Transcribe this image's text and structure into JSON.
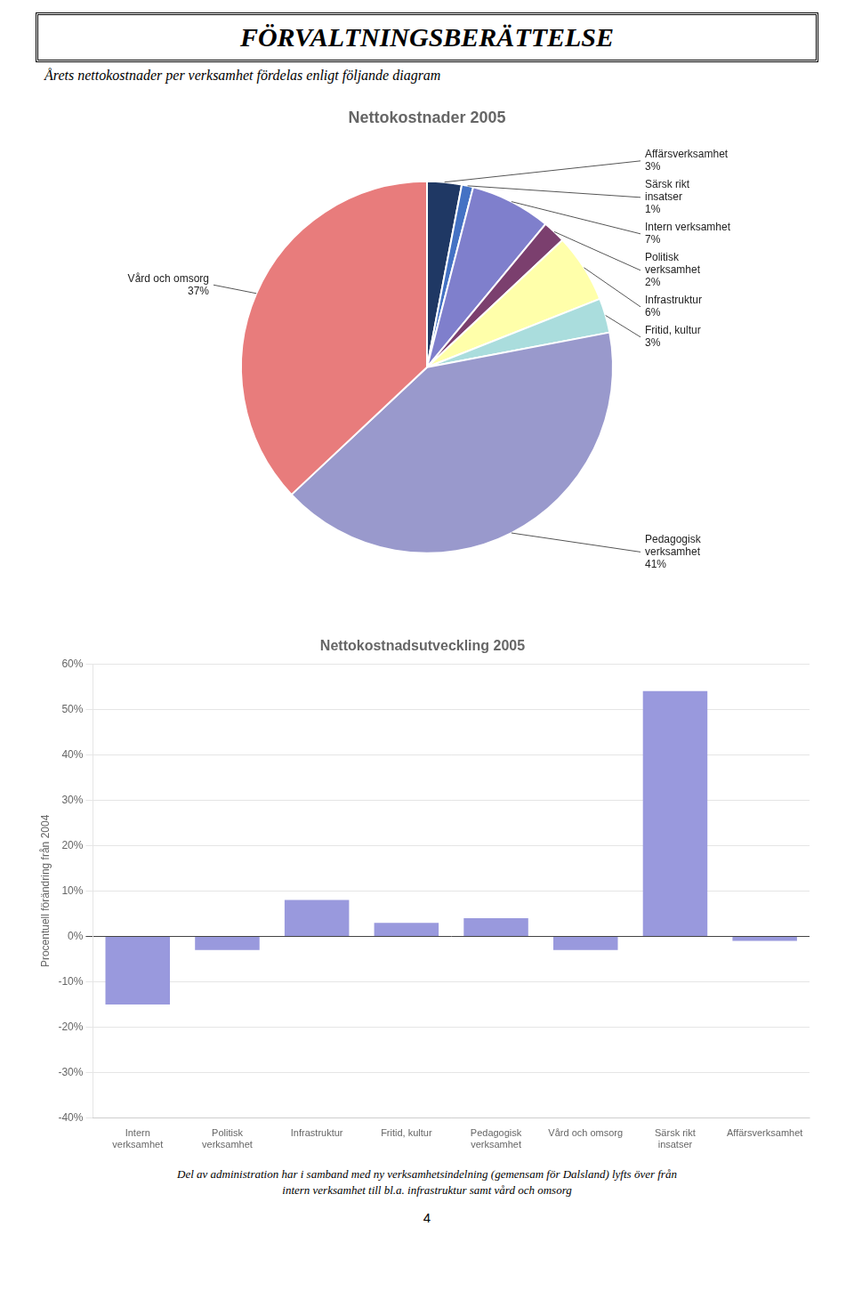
{
  "title": "FÖRVALTNINGSBERÄTTELSE",
  "subtitle": "Årets nettokostnader per verksamhet fördelas enligt följande diagram",
  "annotations": [
    "Del av administration har i samband med ny verksamhetsindelning (gemensam för Dalsland) lyfts över från",
    "intern verksamhet till bl.a. infrastruktur samt vård och omsorg",
    "4"
  ],
  "chart_data": [
    {
      "type": "pie",
      "title": "Nettokostnader 2005",
      "categories": [
        "Affärsverksamhet",
        "Särsk rikt\ninsatser",
        "Intern verksamhet",
        "Politisk\nverksamhet",
        "Infrastruktur",
        "Fritid, kultur",
        "Pedagogisk\nverksamhet",
        "Vård och omsorg"
      ],
      "values": [
        3,
        1,
        7,
        2,
        6,
        3,
        41,
        37
      ],
      "value_labels": [
        "3%",
        "1%",
        "7%",
        "2%",
        "6%",
        "3%",
        "41%",
        "37%"
      ],
      "data_labels": true,
      "colors": [
        "#1f3864",
        "#4472c4",
        "#7f7fcc",
        "#7b3f6e",
        "#ffffaa",
        "#aadddd",
        "#9999cc",
        "#e87c7c"
      ]
    },
    {
      "type": "bar",
      "title": "Nettokostnadsutveckling 2005",
      "ylabel": "Procentuell förändring från 2004",
      "categories": [
        "Intern\nverksamhet",
        "Politisk\nverksamhet",
        "Infrastruktur",
        "Fritid, kultur",
        "Pedagogisk\nverksamhet",
        "Vård och omsorg",
        "Särsk rikt\ninsatser",
        "Affärsverksamhet"
      ],
      "values": [
        -15,
        -3,
        8,
        3,
        4,
        -3,
        54,
        -1
      ],
      "color": "#9999dd",
      "ylim": [
        -40,
        60
      ],
      "yticks": [
        {
          "value": -40,
          "label": "-40%"
        },
        {
          "value": -30,
          "label": "-30%"
        },
        {
          "value": -20,
          "label": "-20%"
        },
        {
          "value": -10,
          "label": "-10%"
        },
        {
          "value": 0,
          "label": "0%"
        },
        {
          "value": 10,
          "label": "10%"
        },
        {
          "value": 20,
          "label": "20%"
        },
        {
          "value": 30,
          "label": "30%"
        },
        {
          "value": 40,
          "label": "40%"
        },
        {
          "value": 50,
          "label": "50%"
        },
        {
          "value": 60,
          "label": "60%"
        }
      ],
      "grid": true
    }
  ]
}
